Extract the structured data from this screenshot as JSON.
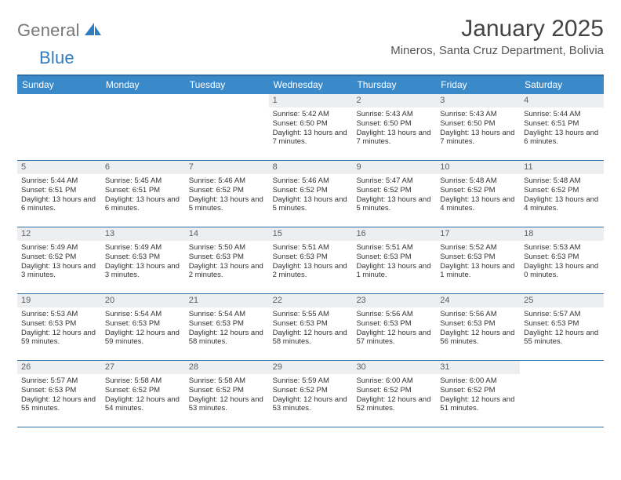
{
  "logo": {
    "general": "General",
    "blue": "Blue"
  },
  "title": "January 2025",
  "location": "Mineros, Santa Cruz Department, Bolivia",
  "day_names": [
    "Sunday",
    "Monday",
    "Tuesday",
    "Wednesday",
    "Thursday",
    "Friday",
    "Saturday"
  ],
  "colors": {
    "header_bg": "#3a89c9",
    "border": "#2f6fa8",
    "dayshade": "#eceef0",
    "title_text": "#444444",
    "body_text": "#333333",
    "logo_gray": "#777777",
    "logo_blue": "#2f7cc0"
  },
  "weeks": [
    [
      null,
      null,
      null,
      {
        "n": "1",
        "sr": "5:42 AM",
        "ss": "6:50 PM",
        "dl": "13 hours and 7 minutes."
      },
      {
        "n": "2",
        "sr": "5:43 AM",
        "ss": "6:50 PM",
        "dl": "13 hours and 7 minutes."
      },
      {
        "n": "3",
        "sr": "5:43 AM",
        "ss": "6:50 PM",
        "dl": "13 hours and 7 minutes."
      },
      {
        "n": "4",
        "sr": "5:44 AM",
        "ss": "6:51 PM",
        "dl": "13 hours and 6 minutes."
      }
    ],
    [
      {
        "n": "5",
        "sr": "5:44 AM",
        "ss": "6:51 PM",
        "dl": "13 hours and 6 minutes."
      },
      {
        "n": "6",
        "sr": "5:45 AM",
        "ss": "6:51 PM",
        "dl": "13 hours and 6 minutes."
      },
      {
        "n": "7",
        "sr": "5:46 AM",
        "ss": "6:52 PM",
        "dl": "13 hours and 5 minutes."
      },
      {
        "n": "8",
        "sr": "5:46 AM",
        "ss": "6:52 PM",
        "dl": "13 hours and 5 minutes."
      },
      {
        "n": "9",
        "sr": "5:47 AM",
        "ss": "6:52 PM",
        "dl": "13 hours and 5 minutes."
      },
      {
        "n": "10",
        "sr": "5:48 AM",
        "ss": "6:52 PM",
        "dl": "13 hours and 4 minutes."
      },
      {
        "n": "11",
        "sr": "5:48 AM",
        "ss": "6:52 PM",
        "dl": "13 hours and 4 minutes."
      }
    ],
    [
      {
        "n": "12",
        "sr": "5:49 AM",
        "ss": "6:52 PM",
        "dl": "13 hours and 3 minutes."
      },
      {
        "n": "13",
        "sr": "5:49 AM",
        "ss": "6:53 PM",
        "dl": "13 hours and 3 minutes."
      },
      {
        "n": "14",
        "sr": "5:50 AM",
        "ss": "6:53 PM",
        "dl": "13 hours and 2 minutes."
      },
      {
        "n": "15",
        "sr": "5:51 AM",
        "ss": "6:53 PM",
        "dl": "13 hours and 2 minutes."
      },
      {
        "n": "16",
        "sr": "5:51 AM",
        "ss": "6:53 PM",
        "dl": "13 hours and 1 minute."
      },
      {
        "n": "17",
        "sr": "5:52 AM",
        "ss": "6:53 PM",
        "dl": "13 hours and 1 minute."
      },
      {
        "n": "18",
        "sr": "5:53 AM",
        "ss": "6:53 PM",
        "dl": "13 hours and 0 minutes."
      }
    ],
    [
      {
        "n": "19",
        "sr": "5:53 AM",
        "ss": "6:53 PM",
        "dl": "12 hours and 59 minutes."
      },
      {
        "n": "20",
        "sr": "5:54 AM",
        "ss": "6:53 PM",
        "dl": "12 hours and 59 minutes."
      },
      {
        "n": "21",
        "sr": "5:54 AM",
        "ss": "6:53 PM",
        "dl": "12 hours and 58 minutes."
      },
      {
        "n": "22",
        "sr": "5:55 AM",
        "ss": "6:53 PM",
        "dl": "12 hours and 58 minutes."
      },
      {
        "n": "23",
        "sr": "5:56 AM",
        "ss": "6:53 PM",
        "dl": "12 hours and 57 minutes."
      },
      {
        "n": "24",
        "sr": "5:56 AM",
        "ss": "6:53 PM",
        "dl": "12 hours and 56 minutes."
      },
      {
        "n": "25",
        "sr": "5:57 AM",
        "ss": "6:53 PM",
        "dl": "12 hours and 55 minutes."
      }
    ],
    [
      {
        "n": "26",
        "sr": "5:57 AM",
        "ss": "6:53 PM",
        "dl": "12 hours and 55 minutes."
      },
      {
        "n": "27",
        "sr": "5:58 AM",
        "ss": "6:52 PM",
        "dl": "12 hours and 54 minutes."
      },
      {
        "n": "28",
        "sr": "5:58 AM",
        "ss": "6:52 PM",
        "dl": "12 hours and 53 minutes."
      },
      {
        "n": "29",
        "sr": "5:59 AM",
        "ss": "6:52 PM",
        "dl": "12 hours and 53 minutes."
      },
      {
        "n": "30",
        "sr": "6:00 AM",
        "ss": "6:52 PM",
        "dl": "12 hours and 52 minutes."
      },
      {
        "n": "31",
        "sr": "6:00 AM",
        "ss": "6:52 PM",
        "dl": "12 hours and 51 minutes."
      },
      null
    ]
  ],
  "labels": {
    "sunrise": "Sunrise:",
    "sunset": "Sunset:",
    "daylight": "Daylight:"
  }
}
